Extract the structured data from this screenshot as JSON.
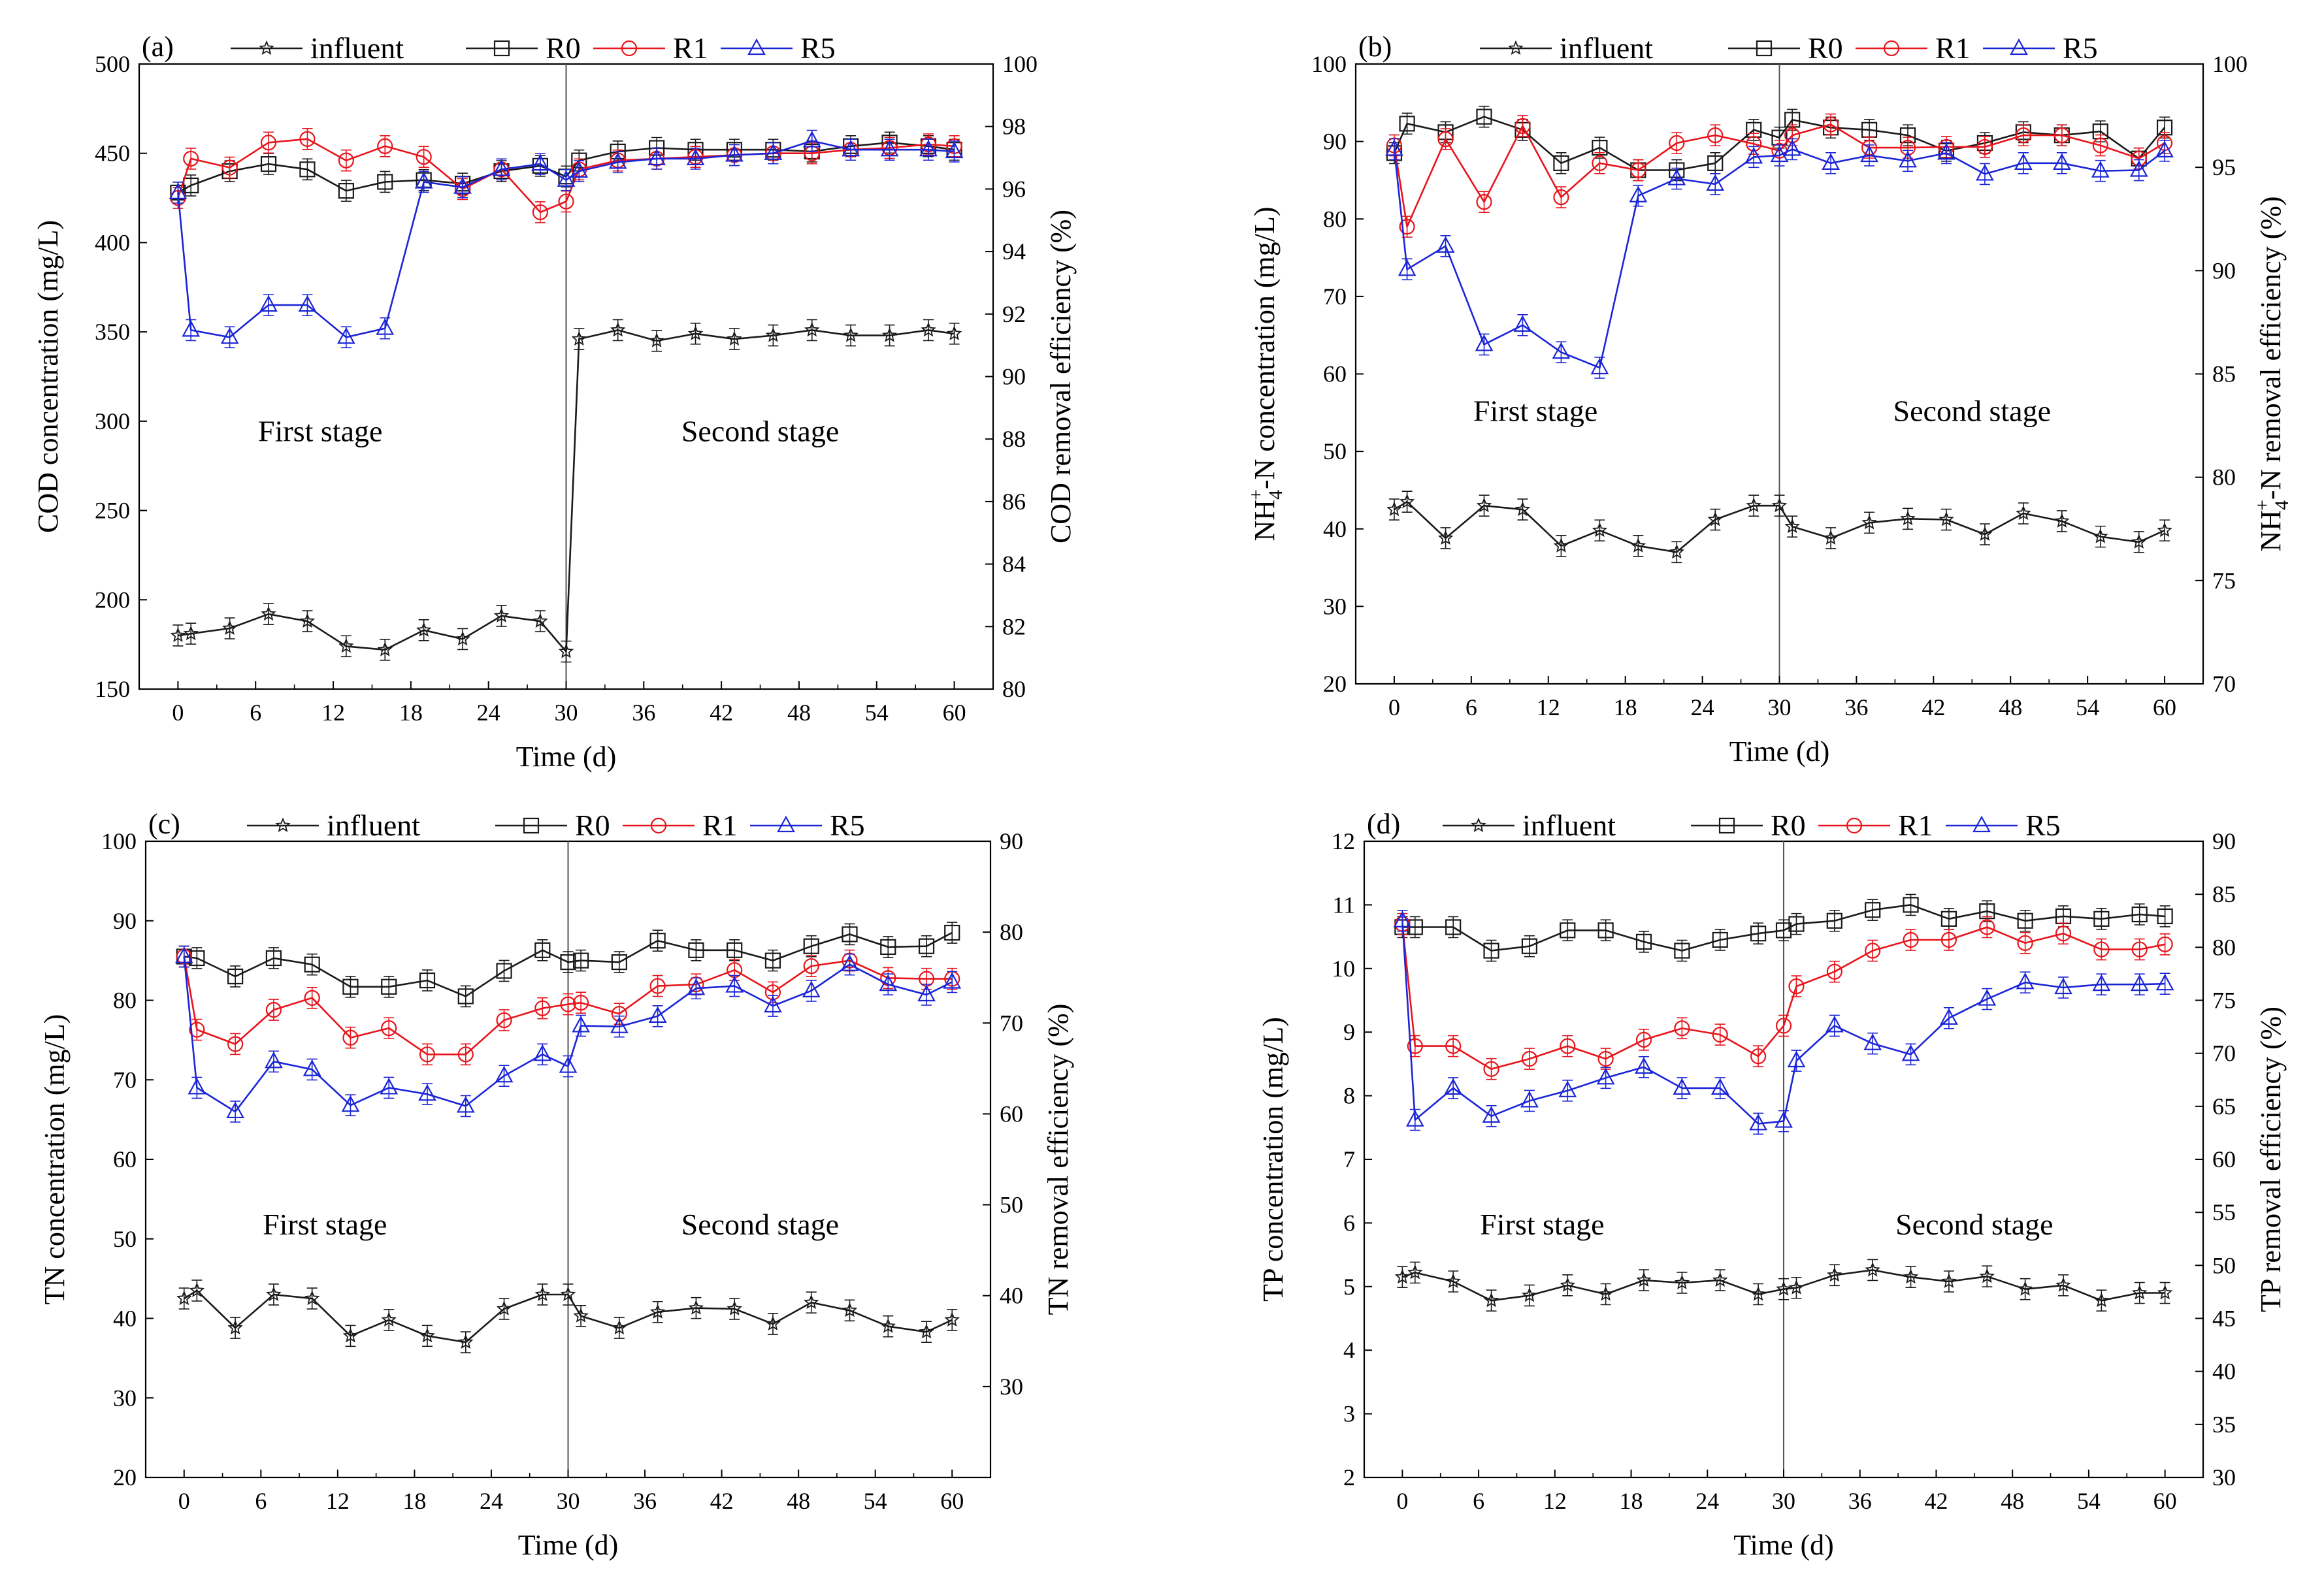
{
  "figure": {
    "series_styles": [
      {
        "name": "influent",
        "color": "#1a1a1a",
        "marker": "star"
      },
      {
        "name": "R0",
        "color": "#1a1a1a",
        "marker": "square"
      },
      {
        "name": "R1",
        "color": "#e8141b",
        "marker": "circle"
      },
      {
        "name": "R5",
        "color": "#1b25d6",
        "marker": "triangle"
      }
    ],
    "divider_x": 30
  },
  "chart_data": [
    {
      "panel": "(a)",
      "type": "line",
      "title": "",
      "xlabel": "Time (d)",
      "ylabel_left": "COD concentration (mg/L)",
      "ylabel_right": "COD removal efficiency (%)",
      "xlim": [
        -3,
        63
      ],
      "xticks": [
        0,
        6,
        12,
        18,
        24,
        30,
        36,
        42,
        48,
        54,
        60
      ],
      "ylim_left": [
        150,
        500
      ],
      "yticks_left": [
        150,
        200,
        250,
        300,
        350,
        400,
        450,
        500
      ],
      "ylim_right": [
        80,
        100
      ],
      "yticks_right": [
        80,
        82,
        84,
        86,
        88,
        90,
        92,
        94,
        96,
        98,
        100
      ],
      "stage_labels": [
        "First stage",
        "Second stage"
      ],
      "legend": [
        "influent",
        "R0",
        "R1",
        "R5"
      ],
      "series": [
        {
          "name": "influent",
          "x": [
            0,
            1,
            4,
            7,
            10,
            13,
            16,
            19,
            22,
            25,
            28,
            30,
            31,
            34,
            37,
            40,
            43,
            46,
            49,
            52,
            55,
            58,
            60
          ],
          "values": [
            180,
            181,
            184,
            192,
            188,
            174,
            172,
            183,
            178,
            191,
            188,
            171,
            346,
            351,
            345,
            349,
            346,
            348,
            351,
            348,
            348,
            351,
            349
          ]
        },
        {
          "name": "R0",
          "x": [
            0,
            1,
            4,
            7,
            10,
            13,
            16,
            19,
            22,
            25,
            28,
            30,
            31,
            34,
            37,
            40,
            43,
            46,
            49,
            52,
            55,
            58,
            60
          ],
          "values": [
            428,
            432,
            440,
            444,
            441,
            429,
            434,
            435,
            433,
            440,
            443,
            437,
            446,
            451,
            453,
            452,
            452,
            452,
            451,
            454,
            456,
            454,
            452
          ]
        },
        {
          "name": "R1",
          "x": [
            0,
            1,
            4,
            7,
            10,
            13,
            16,
            19,
            22,
            25,
            28,
            30,
            31,
            34,
            37,
            40,
            43,
            46,
            49,
            52,
            55,
            58,
            60
          ],
          "values": [
            425,
            447,
            442,
            456,
            458,
            446,
            454,
            448,
            430,
            441,
            417,
            423,
            441,
            446,
            447,
            448,
            449,
            450,
            450,
            452,
            453,
            455,
            454
          ]
        },
        {
          "name": "R5",
          "x": [
            0,
            1,
            4,
            7,
            10,
            13,
            16,
            19,
            22,
            25,
            28,
            30,
            31,
            34,
            37,
            40,
            43,
            46,
            49,
            52,
            55,
            58,
            60
          ],
          "values": [
            428,
            351,
            347,
            365,
            365,
            347,
            352,
            434,
            431,
            441,
            444,
            435,
            440,
            445,
            447,
            447,
            449,
            450,
            457,
            452,
            452,
            452,
            451
          ]
        }
      ]
    },
    {
      "panel": "(b)",
      "type": "line",
      "title": "",
      "xlabel": "Time (d)",
      "ylabel_left_main": "NH",
      "ylabel_left_sub": "4",
      "ylabel_left_sup": "+",
      "ylabel_left_rest": "-N concentration (mg/L)",
      "ylabel_right_main": "NH",
      "ylabel_right_sub": "4",
      "ylabel_right_sup": "+",
      "ylabel_right_rest": "-N removal efficiency (%)",
      "xlim": [
        -3,
        63
      ],
      "xticks": [
        0,
        6,
        12,
        18,
        24,
        30,
        36,
        42,
        48,
        54,
        60
      ],
      "ylim_left": [
        20,
        100
      ],
      "yticks_left": [
        20,
        30,
        40,
        50,
        60,
        70,
        80,
        90,
        100
      ],
      "ylim_right": [
        70,
        100
      ],
      "yticks_right": [
        70,
        75,
        80,
        85,
        90,
        95,
        100
      ],
      "stage_labels": [
        "First stage",
        "Second stage"
      ],
      "legend": [
        "influent",
        "R0",
        "R1",
        "R5"
      ],
      "series": [
        {
          "name": "influent",
          "x": [
            0,
            1,
            4,
            7,
            10,
            13,
            16,
            19,
            22,
            25,
            28,
            30,
            31,
            34,
            37,
            40,
            43,
            46,
            49,
            52,
            55,
            58,
            60
          ],
          "values": [
            42.5,
            43.5,
            38.8,
            43,
            42.5,
            37.8,
            39.8,
            37.8,
            37,
            41.2,
            43,
            43,
            40.3,
            38.8,
            40.8,
            41.3,
            41.2,
            39.3,
            42,
            41,
            39,
            38.3,
            39.8
          ]
        },
        {
          "name": "R0",
          "x": [
            0,
            1,
            4,
            7,
            10,
            13,
            16,
            19,
            22,
            25,
            28,
            30,
            31,
            34,
            37,
            40,
            43,
            46,
            49,
            52,
            55,
            58,
            60
          ],
          "values": [
            88.5,
            92.3,
            91.2,
            93.2,
            91.5,
            87.2,
            89.2,
            86.3,
            86.3,
            87.2,
            91.5,
            90.5,
            92.8,
            91.8,
            91.5,
            90.8,
            88.8,
            89.8,
            91.2,
            90.8,
            91.3,
            87.8,
            91.8
          ]
        },
        {
          "name": "R1",
          "x": [
            0,
            1,
            4,
            7,
            10,
            13,
            16,
            19,
            22,
            25,
            28,
            30,
            31,
            34,
            37,
            40,
            43,
            46,
            49,
            52,
            55,
            58,
            60
          ],
          "values": [
            89.5,
            79,
            90.3,
            82.2,
            92,
            82.8,
            87.2,
            86.3,
            89.8,
            90.8,
            89.7,
            88.8,
            90.8,
            92.2,
            89.2,
            89.2,
            89.3,
            89.3,
            90.8,
            90.8,
            89.5,
            87.8,
            89.8
          ]
        },
        {
          "name": "R5",
          "x": [
            0,
            1,
            4,
            7,
            10,
            13,
            16,
            19,
            22,
            25,
            28,
            30,
            31,
            34,
            37,
            40,
            43,
            46,
            49,
            52,
            55,
            58,
            60
          ],
          "values": [
            89,
            73.5,
            76.5,
            63.8,
            66.3,
            62.8,
            60.8,
            83,
            85.2,
            84.5,
            88,
            88.2,
            89,
            87.2,
            88.2,
            87.5,
            88.5,
            85.8,
            87.2,
            87.2,
            86.2,
            86.3,
            88.8
          ]
        }
      ]
    },
    {
      "panel": "(c)",
      "type": "line",
      "title": "",
      "xlabel": "Time (d)",
      "ylabel_left": "TN concentration (mg/L)",
      "ylabel_right": "TN removal efficiency (%)",
      "xlim": [
        -3,
        63
      ],
      "xticks": [
        0,
        6,
        12,
        18,
        24,
        30,
        36,
        42,
        48,
        54,
        60
      ],
      "ylim_left": [
        20,
        100
      ],
      "yticks_left": [
        20,
        30,
        40,
        50,
        60,
        70,
        80,
        90,
        100
      ],
      "ylim_right": [
        20,
        90
      ],
      "yticks_right": [
        30,
        40,
        50,
        60,
        70,
        80,
        90
      ],
      "stage_labels": [
        "First stage",
        "Second stage"
      ],
      "legend": [
        "influent",
        "R0",
        "R1",
        "R5"
      ],
      "series": [
        {
          "name": "influent",
          "x": [
            0,
            1,
            4,
            7,
            10,
            13,
            16,
            19,
            22,
            25,
            28,
            30,
            31,
            34,
            37,
            40,
            43,
            46,
            49,
            52,
            55,
            58,
            60
          ],
          "values": [
            42.5,
            43.5,
            38.8,
            43,
            42.5,
            37.8,
            39.8,
            37.8,
            37,
            41.2,
            43,
            43,
            40.3,
            38.8,
            40.8,
            41.3,
            41.2,
            39.3,
            42,
            41,
            39,
            38.3,
            39.8
          ]
        },
        {
          "name": "R0",
          "x": [
            0,
            1,
            4,
            7,
            10,
            13,
            16,
            19,
            22,
            25,
            28,
            30,
            31,
            34,
            37,
            40,
            43,
            46,
            49,
            52,
            55,
            58,
            60
          ],
          "values": [
            85.5,
            85.3,
            83,
            85.3,
            84.5,
            81.7,
            81.7,
            82.5,
            80.5,
            83.7,
            86.3,
            84.8,
            85,
            84.8,
            87.5,
            86.3,
            86.3,
            85,
            86.8,
            88.3,
            86.7,
            86.8,
            88.5
          ]
        },
        {
          "name": "R1",
          "x": [
            0,
            1,
            4,
            7,
            10,
            13,
            16,
            19,
            22,
            25,
            28,
            30,
            31,
            34,
            37,
            40,
            43,
            46,
            49,
            52,
            55,
            58,
            60
          ],
          "values": [
            85.5,
            76.3,
            74.5,
            78.8,
            80.3,
            75.3,
            76.5,
            73.2,
            73.2,
            77.5,
            79,
            79.5,
            79.7,
            78.3,
            81.8,
            82,
            83.8,
            81,
            84.3,
            85,
            82.8,
            82.7,
            82.7
          ]
        },
        {
          "name": "R5",
          "x": [
            0,
            1,
            4,
            7,
            10,
            13,
            16,
            19,
            22,
            25,
            28,
            30,
            31,
            34,
            37,
            40,
            43,
            46,
            49,
            52,
            55,
            58,
            60
          ],
          "values": [
            85.5,
            69,
            66,
            72.3,
            71.3,
            66.8,
            69,
            68.2,
            66.7,
            70.5,
            73.2,
            71.7,
            76.8,
            76.7,
            78,
            81.5,
            81.8,
            79.3,
            81.2,
            84.5,
            82,
            80.7,
            82.3
          ]
        }
      ]
    },
    {
      "panel": "(d)",
      "type": "line",
      "title": "",
      "xlabel": "Time (d)",
      "ylabel_left": "TP concentration (mg/L)",
      "ylabel_right": "TP removal efficiency (%)",
      "xlim": [
        -3,
        63
      ],
      "xticks": [
        0,
        6,
        12,
        18,
        24,
        30,
        36,
        42,
        48,
        54,
        60
      ],
      "ylim_left": [
        2,
        12
      ],
      "yticks_left": [
        2,
        3,
        4,
        5,
        6,
        7,
        8,
        9,
        10,
        11,
        12
      ],
      "ylim_right": [
        30,
        90
      ],
      "yticks_right": [
        30,
        35,
        40,
        45,
        50,
        55,
        60,
        65,
        70,
        75,
        80,
        85,
        90
      ],
      "stage_labels": [
        "First stage",
        "Second stage"
      ],
      "legend": [
        "influent",
        "R0",
        "R1",
        "R5"
      ],
      "series": [
        {
          "name": "influent",
          "x": [
            0,
            1,
            4,
            7,
            10,
            13,
            16,
            19,
            22,
            25,
            28,
            30,
            31,
            34,
            37,
            40,
            43,
            46,
            49,
            52,
            55,
            58,
            60
          ],
          "values": [
            5.15,
            5.22,
            5.08,
            4.78,
            4.86,
            5.02,
            4.88,
            5.1,
            5.06,
            5.1,
            4.88,
            4.96,
            4.98,
            5.18,
            5.26,
            5.15,
            5.08,
            5.16,
            4.96,
            5.02,
            4.78,
            4.9,
            4.9
          ]
        },
        {
          "name": "R0",
          "x": [
            0,
            1,
            4,
            7,
            10,
            13,
            16,
            19,
            22,
            25,
            28,
            30,
            31,
            34,
            37,
            40,
            43,
            46,
            49,
            52,
            55,
            58,
            60
          ],
          "values": [
            10.65,
            10.65,
            10.65,
            10.28,
            10.35,
            10.6,
            10.6,
            10.42,
            10.28,
            10.45,
            10.55,
            10.6,
            10.7,
            10.75,
            10.92,
            11,
            10.78,
            10.9,
            10.75,
            10.82,
            10.78,
            10.85,
            10.82
          ]
        },
        {
          "name": "R1",
          "x": [
            0,
            1,
            4,
            7,
            10,
            13,
            16,
            19,
            22,
            25,
            28,
            30,
            31,
            34,
            37,
            40,
            43,
            46,
            49,
            52,
            55,
            58,
            60
          ],
          "values": [
            10.7,
            8.78,
            8.78,
            8.42,
            8.58,
            8.78,
            8.58,
            8.88,
            9.06,
            8.96,
            8.62,
            9.1,
            9.72,
            9.95,
            10.28,
            10.45,
            10.45,
            10.65,
            10.4,
            10.55,
            10.3,
            10.3,
            10.38
          ]
        },
        {
          "name": "R5",
          "x": [
            0,
            1,
            4,
            7,
            10,
            13,
            16,
            19,
            22,
            25,
            28,
            30,
            31,
            34,
            37,
            40,
            43,
            46,
            49,
            52,
            55,
            58,
            60
          ],
          "values": [
            10.75,
            7.62,
            8.12,
            7.68,
            7.92,
            8.08,
            8.28,
            8.45,
            8.12,
            8.12,
            7.56,
            7.6,
            8.55,
            9.1,
            8.82,
            8.65,
            9.22,
            9.52,
            9.78,
            9.7,
            9.75,
            9.75,
            9.76
          ]
        }
      ]
    }
  ]
}
